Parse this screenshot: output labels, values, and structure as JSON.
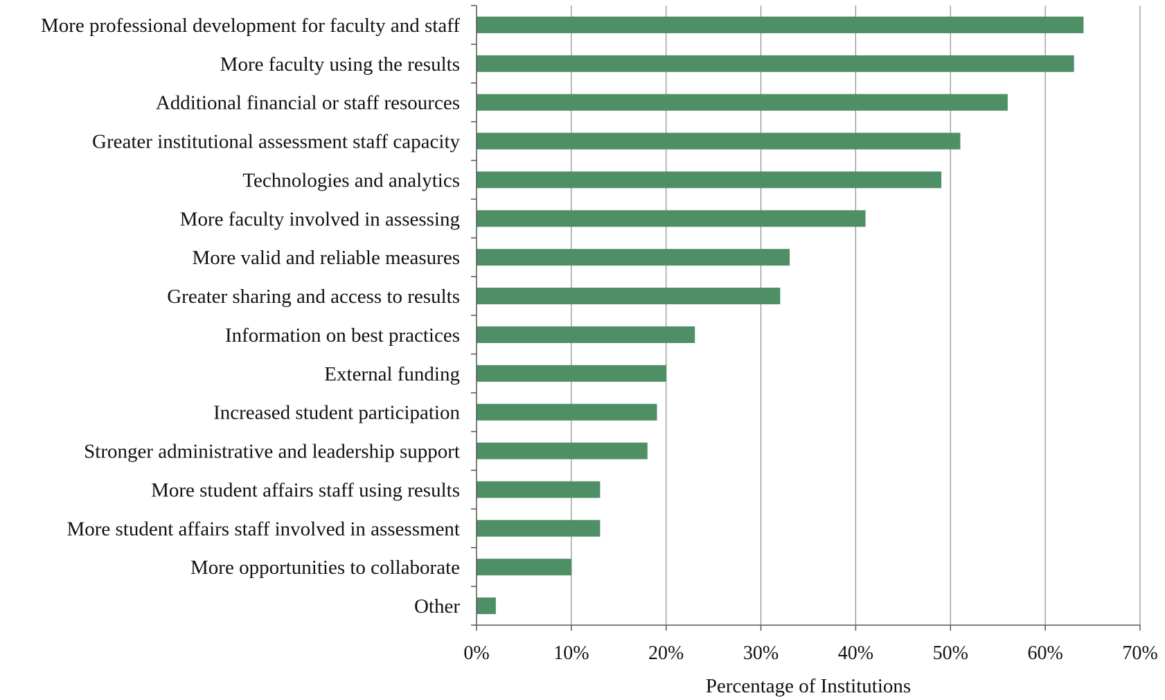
{
  "chart_data": {
    "type": "bar",
    "orientation": "horizontal",
    "categories": [
      "More professional development for faculty and staff",
      "More faculty using the results",
      "Additional financial or staff resources",
      "Greater institutional assessment staff capacity",
      "Technologies and analytics",
      "More faculty involved in assessing",
      "More valid and reliable measures",
      "Greater sharing and access to results",
      "Information on best practices",
      "External funding",
      "Increased student participation",
      "Stronger administrative and leadership support",
      "More student affairs staff using results",
      "More student affairs staff involved in assessment",
      "More opportunities to collaborate",
      "Other"
    ],
    "values": [
      64,
      63,
      56,
      51,
      49,
      41,
      33,
      32,
      23,
      20,
      19,
      18,
      13,
      13,
      10,
      2
    ],
    "title": "",
    "xlabel": "Percentage of Institutions",
    "ylabel": "",
    "xlim": [
      0,
      70
    ],
    "xticks": [
      0,
      10,
      20,
      30,
      40,
      50,
      60,
      70
    ],
    "xtick_labels": [
      "0%",
      "10%",
      "20%",
      "30%",
      "40%",
      "50%",
      "60%",
      "70%"
    ],
    "grid": "vertical",
    "legend": "none",
    "bar_color": "#4f8f66",
    "grid_color": "#8c8c8c",
    "axis_color": "#555555"
  }
}
